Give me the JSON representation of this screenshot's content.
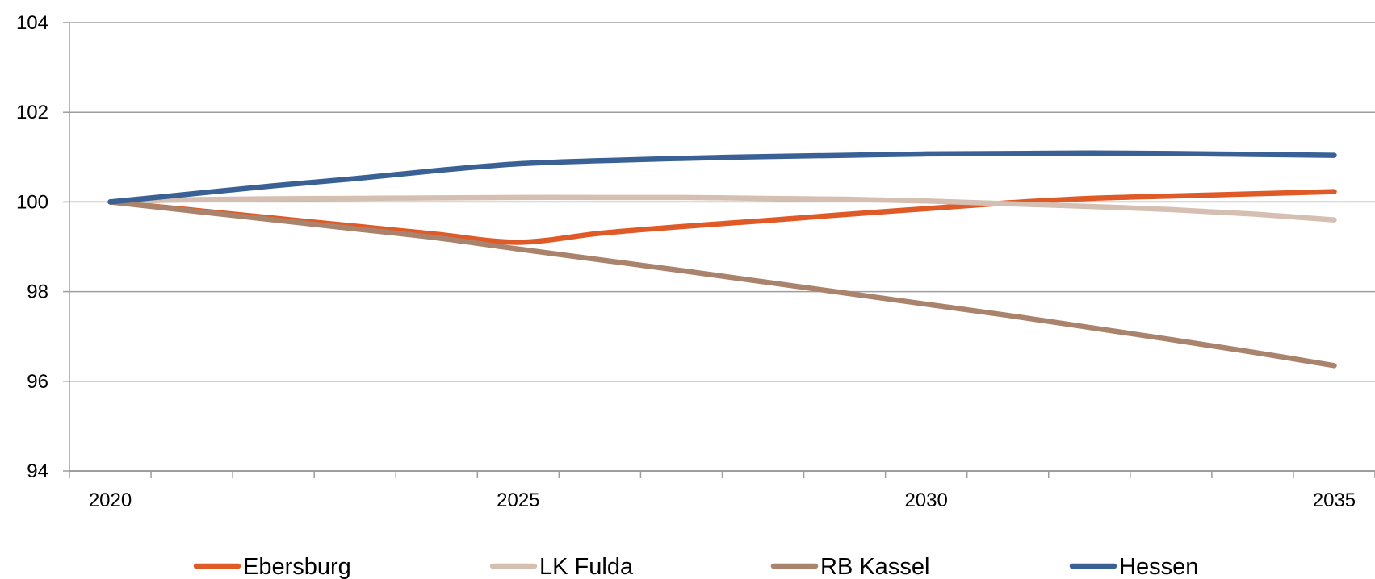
{
  "chart_data": {
    "type": "line",
    "title": "",
    "xlabel": "",
    "ylabel": "",
    "x": [
      2020,
      2021,
      2022,
      2023,
      2024,
      2025,
      2026,
      2027,
      2028,
      2029,
      2030,
      2031,
      2032,
      2033,
      2034,
      2035
    ],
    "x_tick_labels": [
      "2020",
      "2025",
      "2030",
      "2035"
    ],
    "x_tick_values": [
      2020,
      2025,
      2030,
      2035
    ],
    "xlim": [
      2019.5,
      2035.5
    ],
    "ylim": [
      94,
      104
    ],
    "y_ticks": [
      94,
      96,
      98,
      100,
      102,
      104
    ],
    "y_tick_labels": [
      "94",
      "96",
      "98",
      "100",
      "102",
      "104"
    ],
    "grid": "horizontal",
    "legend_position": "bottom",
    "series": [
      {
        "name": "Ebersburg",
        "color": "#e05a27",
        "values": [
          100.0,
          99.82,
          99.64,
          99.46,
          99.28,
          99.1,
          99.3,
          99.45,
          99.58,
          99.72,
          99.85,
          99.98,
          100.08,
          100.13,
          100.18,
          100.23
        ]
      },
      {
        "name": "LK Fulda",
        "color": "#d5bfb2",
        "values": [
          100.0,
          100.05,
          100.07,
          100.08,
          100.09,
          100.1,
          100.1,
          100.1,
          100.08,
          100.06,
          100.02,
          99.96,
          99.9,
          99.83,
          99.73,
          99.6
        ]
      },
      {
        "name": "RB Kassel",
        "color": "#a9836b",
        "values": [
          100.0,
          99.8,
          99.6,
          99.4,
          99.2,
          98.95,
          98.71,
          98.47,
          98.22,
          97.97,
          97.72,
          97.47,
          97.2,
          96.93,
          96.65,
          96.35
        ]
      },
      {
        "name": "Hessen",
        "color": "#3a6196",
        "values": [
          100.0,
          100.18,
          100.36,
          100.52,
          100.7,
          100.85,
          100.92,
          100.97,
          101.01,
          101.04,
          101.07,
          101.08,
          101.09,
          101.08,
          101.06,
          101.04
        ]
      }
    ]
  }
}
